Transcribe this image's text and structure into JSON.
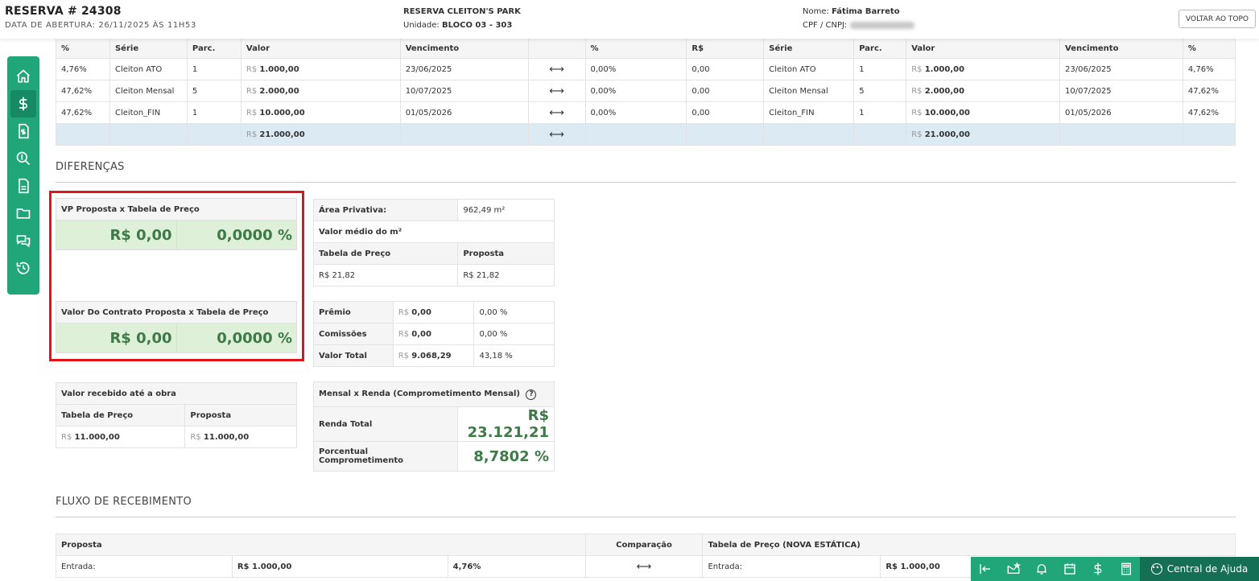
{
  "header": {
    "title": "RESERVA # 24308",
    "subtitle": "DATA DE ABERTURA: 26/11/2025 ÀS 11H53",
    "project": "RESERVA CLEITON'S PARK",
    "unit_label": "Unidade:",
    "unit_value": "BLOCO 03 - 303",
    "name_label": "Nome:",
    "name_value": "Fátima Barreto",
    "doc_label": "CPF / CNPJ:",
    "back_to_top": "VOLTAR AO TOPO"
  },
  "sidebar": {
    "items": [
      {
        "icon": "home-icon"
      },
      {
        "icon": "dollar-icon"
      },
      {
        "icon": "invoice-icon"
      },
      {
        "icon": "search-dollar-icon"
      },
      {
        "icon": "document-icon"
      },
      {
        "icon": "folder-icon"
      },
      {
        "icon": "chat-icon"
      },
      {
        "icon": "history-icon"
      }
    ]
  },
  "parcel_table": {
    "headers": [
      "%",
      "Série",
      "Parc.",
      "Valor",
      "Vencimento",
      "",
      "%",
      "R$",
      "Série",
      "Parc.",
      "Valor",
      "Vencimento",
      "%"
    ],
    "currency": "R$",
    "arrow": "⟷",
    "rows": [
      {
        "pct": "4,76%",
        "serie": "Cleiton ATO",
        "parc": "1",
        "valor": "1.000,00",
        "venc": "23/06/2025",
        "pct2": "0,00%",
        "rs": "0,00",
        "serie2": "Cleiton ATO",
        "parc2": "1",
        "valor2": "1.000,00",
        "venc2": "23/06/2025",
        "pct3": "4,76%"
      },
      {
        "pct": "47,62%",
        "serie": "Cleiton Mensal",
        "parc": "5",
        "valor": "2.000,00",
        "venc": "10/07/2025",
        "pct2": "0,00%",
        "rs": "0,00",
        "serie2": "Cleiton Mensal",
        "parc2": "5",
        "valor2": "2.000,00",
        "venc2": "10/07/2025",
        "pct3": "47,62%"
      },
      {
        "pct": "47,62%",
        "serie": "Cleiton_FIN",
        "parc": "1",
        "valor": "10.000,00",
        "venc": "01/05/2026",
        "pct2": "0,00%",
        "rs": "0,00",
        "serie2": "Cleiton_FIN",
        "parc2": "1",
        "valor2": "10.000,00",
        "venc2": "01/05/2026",
        "pct3": "47,62%"
      }
    ],
    "total": "21.000,00",
    "total2": "21.000,00"
  },
  "differences": {
    "title": "DIFERENÇAS",
    "vp_box": {
      "title": "VP Proposta x Tabela de Preço",
      "value": "R$ 0,00",
      "pct": "0,0000 %"
    },
    "contract_box": {
      "title": "Valor Do Contrato Proposta x Tabela de Preço",
      "value": "R$ 0,00",
      "pct": "0,0000 %"
    },
    "area": {
      "label": "Área Privativa:",
      "value": "962,49 m²",
      "avg_label": "Valor médio do m²",
      "col1": "Tabela de Preço",
      "col2": "Proposta",
      "val1": "R$ 21,82",
      "val2": "R$ 21,82"
    },
    "premium": {
      "rows": [
        {
          "label": "Prêmio",
          "value": "0,00",
          "pct": "0,00 %"
        },
        {
          "label": "Comissões",
          "value": "0,00",
          "pct": "0,00 %"
        },
        {
          "label": "Valor Total",
          "value": "9.068,29",
          "pct": "43,18 %"
        }
      ]
    },
    "received": {
      "title": "Valor recebido até a obra",
      "col1": "Tabela de Preço",
      "col2": "Proposta",
      "val1": "11.000,00",
      "val2": "11.000,00"
    },
    "income": {
      "title": "Mensal x Renda (Comprometimento Mensal)",
      "help_icon": "?",
      "total_label": "Renda Total",
      "total_value": "R$ 23.121,21",
      "pct_label": "Porcentual Comprometimento",
      "pct_value": "8,7802 %"
    }
  },
  "flow": {
    "title": "FLUXO DE RECEBIMENTO",
    "col_left": "Proposta",
    "col_mid": "Comparação",
    "col_right": "Tabela de Preço (NOVA ESTÁTICA)",
    "row_label": "Entrada:",
    "row_value": "R$ 1.000,00",
    "row_pct": "4,76%",
    "row_label2": "Entrada:",
    "row_value2": "R$ 1.000,00"
  },
  "toolbar": {
    "help": "Central de Ajuda"
  }
}
